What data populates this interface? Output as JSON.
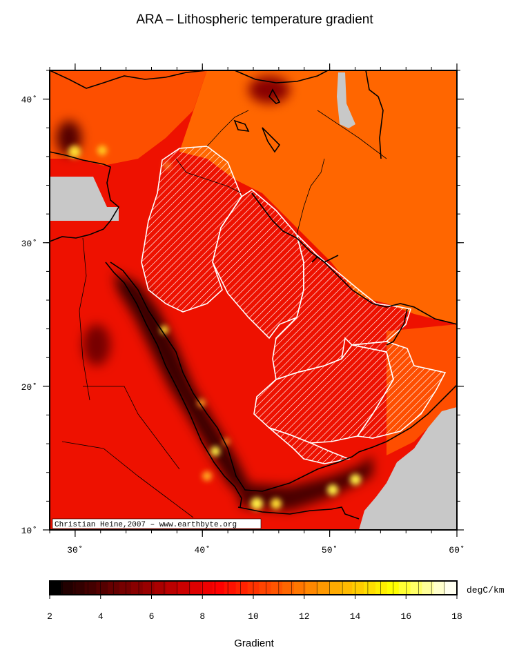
{
  "title": "ARA – Lithospheric temperature gradient",
  "credit": "Christian Heine,2007 – www.earthbyte.org",
  "map": {
    "lon_range": [
      28,
      60
    ],
    "lat_range": [
      10,
      42
    ],
    "x_ticks": [
      {
        "value": 30,
        "label": "30˚"
      },
      {
        "value": 40,
        "label": "40˚"
      },
      {
        "value": 50,
        "label": "50˚"
      },
      {
        "value": 60,
        "label": "60˚"
      }
    ],
    "y_ticks": [
      {
        "value": 10,
        "label": "10˚"
      },
      {
        "value": 20,
        "label": "20˚"
      },
      {
        "value": 30,
        "label": "30˚"
      },
      {
        "value": 40,
        "label": "40˚"
      }
    ],
    "colors": {
      "background_red": "#ee1100",
      "orange": "#ff6600",
      "dark": "#4a0000",
      "hot": "#ffee44",
      "nodata": "#c8c8c8",
      "hatch": "#ffffff"
    }
  },
  "colorbar": {
    "min": 2,
    "max": 18,
    "ticks": [
      "2",
      "4",
      "6",
      "8",
      "10",
      "12",
      "14",
      "16",
      "18"
    ],
    "unit": "degC/km",
    "label": "Gradient",
    "colors": [
      "#000000",
      "#220000",
      "#330000",
      "#440000",
      "#550000",
      "#660000",
      "#770000",
      "#880000",
      "#990000",
      "#aa0000",
      "#bb0000",
      "#cc0000",
      "#dd0000",
      "#ee0000",
      "#ff0000",
      "#ff1100",
      "#ff2200",
      "#ff3300",
      "#ff4400",
      "#ff5500",
      "#ff6600",
      "#ff7700",
      "#ff8800",
      "#ff9900",
      "#ffaa00",
      "#ffbb00",
      "#ffcc00",
      "#ffdd00",
      "#ffee00",
      "#ffff00",
      "#ffff33",
      "#ffff66",
      "#ffff99",
      "#ffffcc",
      "#fffff0"
    ]
  }
}
